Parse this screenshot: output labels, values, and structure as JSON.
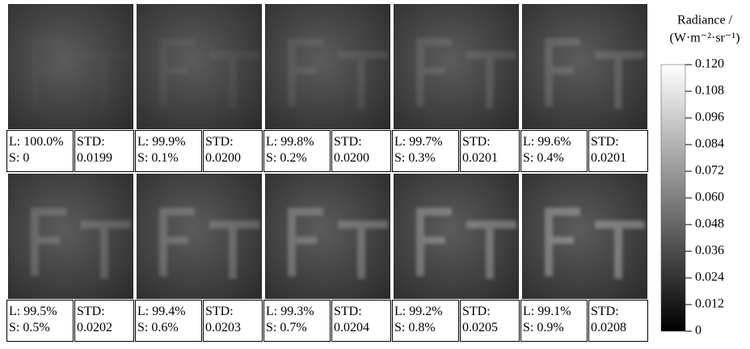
{
  "panels": [
    {
      "l": "L: 100.0%",
      "s": "S: 0",
      "std_label": "STD:",
      "std": "0.0199"
    },
    {
      "l": "L: 99.9%",
      "s": "S: 0.1%",
      "std_label": "STD:",
      "std": "0.0200"
    },
    {
      "l": "L: 99.8%",
      "s": "S: 0.2%",
      "std_label": "STD:",
      "std": "0.0200"
    },
    {
      "l": "L: 99.7%",
      "s": "S: 0.3%",
      "std_label": "STD:",
      "std": "0.0201"
    },
    {
      "l": "L: 99.6%",
      "s": "S: 0.4%",
      "std_label": "STD:",
      "std": "0.0201"
    },
    {
      "l": "L: 99.5%",
      "s": "S: 0.5%",
      "std_label": "STD:",
      "std": "0.0202"
    },
    {
      "l": "L: 99.4%",
      "s": "S: 0.6%",
      "std_label": "STD:",
      "std": "0.0203"
    },
    {
      "l": "L: 99.3%",
      "s": "S: 0.7%",
      "std_label": "STD:",
      "std": "0.0204"
    },
    {
      "l": "L: 99.2%",
      "s": "S: 0.8%",
      "std_label": "STD:",
      "std": "0.0205"
    },
    {
      "l": "L: 99.1%",
      "s": "S: 0.9%",
      "std_label": "STD:",
      "std": "0.0208"
    }
  ],
  "colorbar": {
    "title": [
      "Radiance /",
      "(W·m⁻²·sr⁻¹)"
    ],
    "lim": [
      0,
      0.12
    ],
    "ticks": [
      0,
      {
        "value": 0.012,
        "label": "0.012"
      },
      {
        "value": 0.024,
        "label": "0.024"
      },
      {
        "value": 0.036,
        "label": "0.036"
      },
      {
        "value": 0.048,
        "label": "0.048"
      },
      {
        "value": 0.06,
        "label": "0.060"
      },
      {
        "value": 0.072,
        "label": "0.072"
      },
      {
        "value": 0.084,
        "label": "0.084"
      },
      {
        "value": 0.096,
        "label": "0.096"
      },
      {
        "value": 0.108,
        "label": "0.108"
      },
      {
        "value": 0.12,
        "label": "0.120"
      }
    ]
  }
}
